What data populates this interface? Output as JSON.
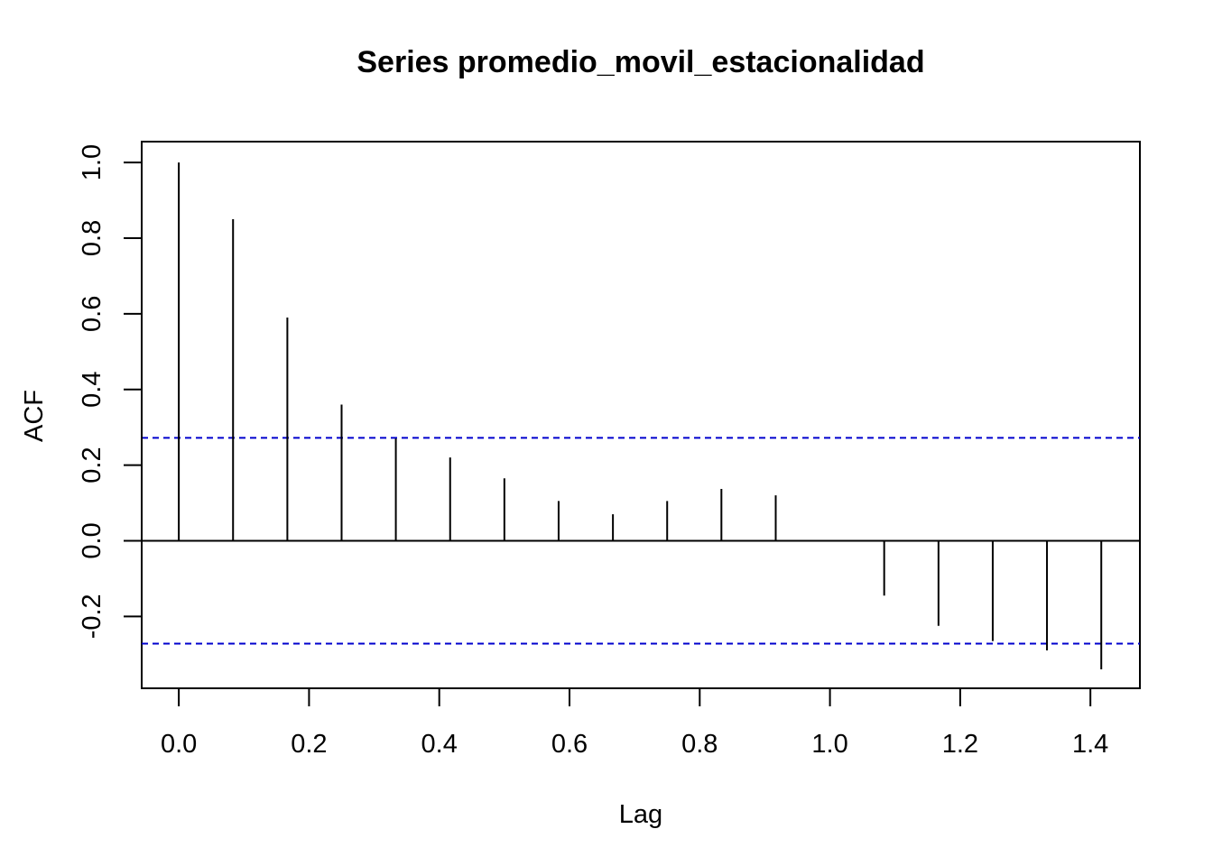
{
  "chart_data": {
    "type": "bar",
    "subtype": "acf-stem",
    "title": "Series  promedio_movil_estacionalidad",
    "xlabel": "Lag",
    "ylabel": "ACF",
    "x": [
      0.0,
      0.0833,
      0.1667,
      0.25,
      0.3333,
      0.4167,
      0.5,
      0.5833,
      0.6667,
      0.75,
      0.8333,
      0.9167,
      1.0,
      1.0833,
      1.1667,
      1.25,
      1.3333,
      1.4167
    ],
    "values": [
      1.0,
      0.85,
      0.59,
      0.36,
      0.27,
      0.22,
      0.165,
      0.105,
      0.07,
      0.105,
      0.137,
      0.12,
      0.0,
      -0.145,
      -0.225,
      -0.265,
      -0.29,
      -0.34
    ],
    "xticks": [
      0.0,
      0.2,
      0.4,
      0.6,
      0.8,
      1.0,
      1.2,
      1.4
    ],
    "xtick_labels": [
      "0.0",
      "0.2",
      "0.4",
      "0.6",
      "0.8",
      "1.0",
      "1.2",
      "1.4"
    ],
    "yticks": [
      -0.2,
      0.0,
      0.2,
      0.4,
      0.6,
      0.8,
      1.0
    ],
    "ytick_labels": [
      "-0.2",
      "0.0",
      "0.2",
      "0.4",
      "0.6",
      "0.8",
      "1.0"
    ],
    "xlim": [
      -0.057,
      1.476
    ],
    "ylim": [
      -0.39,
      1.055
    ],
    "confidence_bound": 0.272,
    "grid": false,
    "colors": {
      "stems": "#000000",
      "confidence": "#0000CD",
      "zero_line": "#000000"
    }
  }
}
